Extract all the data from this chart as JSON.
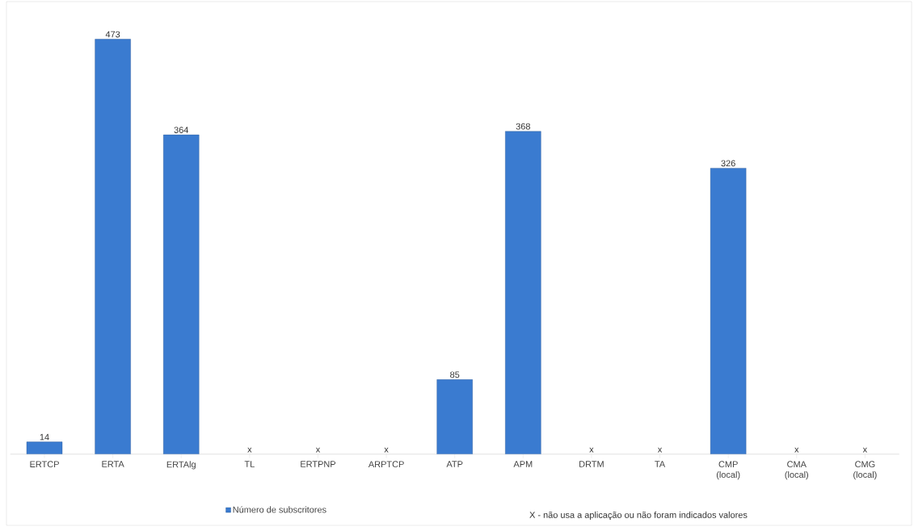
{
  "chart_data": {
    "type": "bar",
    "categories": [
      "ERTCP",
      "ERTA",
      "ERTAlg",
      "TL",
      "ERTPNP",
      "ARPTCP",
      "ATP",
      "APM",
      "DRTM",
      "TA",
      "CMP (local)",
      "CMA (local)",
      "CMG (local)"
    ],
    "series": [
      {
        "name": "Número de subscritores",
        "color": "#3a7bd0",
        "values": [
          14,
          473,
          364,
          null,
          null,
          null,
          85,
          368,
          null,
          null,
          326,
          null,
          null
        ]
      }
    ],
    "data_labels": true,
    "legend": "bottom",
    "annotations": [
      "x",
      "x",
      "x",
      "x",
      "x",
      "x",
      "x",
      "X - não usa a aplicação ou não foram indicados valores"
    ]
  }
}
